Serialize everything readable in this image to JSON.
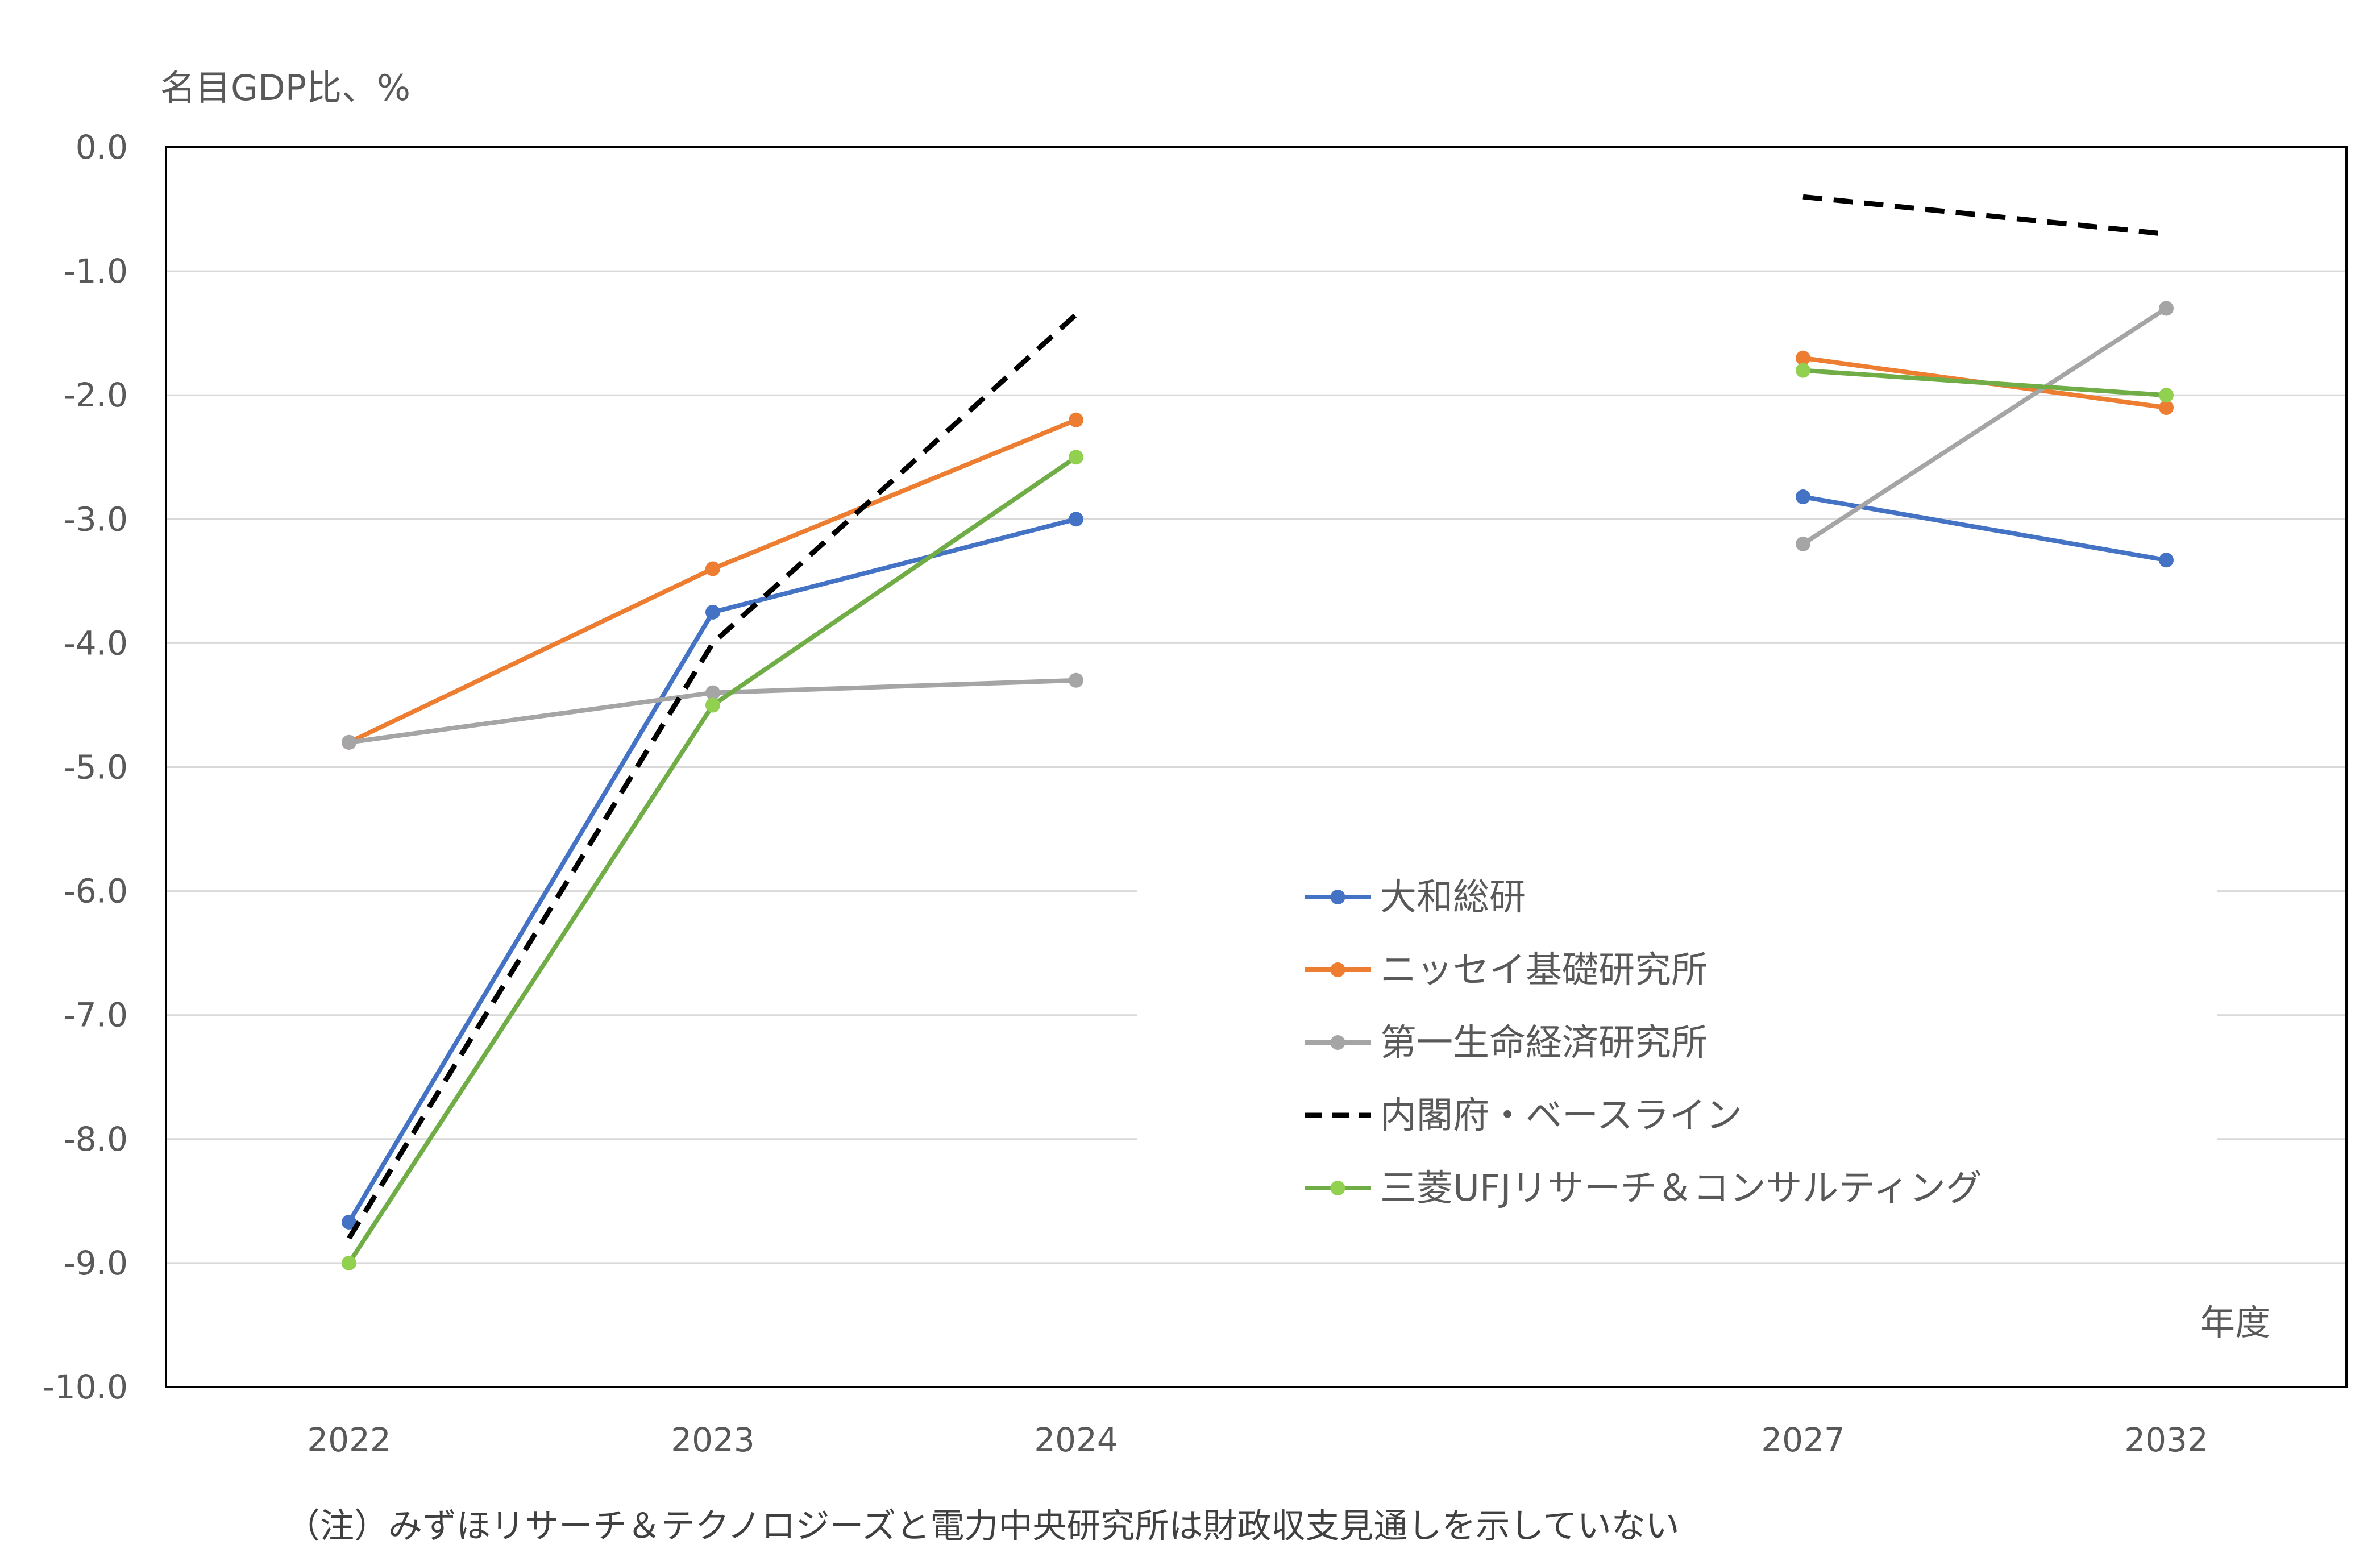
{
  "chart_data": {
    "type": "line",
    "ylabel": "名目GDP比、%",
    "xlabel": "年度",
    "note": "（注）みずほリサーチ＆テクノロジーズと電力中央研究所は財政収支見通しを示していない",
    "categories": [
      "2022",
      "2023",
      "2024",
      "2027",
      "2032"
    ],
    "ylim": [
      -10.0,
      0.0
    ],
    "yticks": [
      "0.0",
      "-1.0",
      "-2.0",
      "-3.0",
      "-4.0",
      "-5.0",
      "-6.0",
      "-7.0",
      "-8.0",
      "-9.0",
      "-10.0"
    ],
    "grid": true,
    "legend_position": "center-right",
    "series": [
      {
        "name": "大和総研",
        "color": "#4472C4",
        "dashed": false,
        "markers": true,
        "values": [
          -8.67,
          -3.75,
          -3.0,
          -2.82,
          -3.33
        ]
      },
      {
        "name": "ニッセイ基礎研究所",
        "color": "#ED7D31",
        "dashed": false,
        "markers": true,
        "values": [
          -4.8,
          -3.4,
          -2.2,
          -1.7,
          -2.1
        ]
      },
      {
        "name": "第一生命経済研究所",
        "color": "#A5A5A5",
        "dashed": false,
        "markers": true,
        "values": [
          -4.8,
          -4.4,
          -4.3,
          -3.2,
          -1.3
        ]
      },
      {
        "name": "内閣府・ベースライン",
        "color": "#000000",
        "dashed": true,
        "markers": false,
        "values": [
          -8.8,
          -4.0,
          -1.35,
          -0.4,
          -0.7
        ]
      },
      {
        "name": "三菱UFJリサーチ＆コンサルティング",
        "color": "#70AD47",
        "markerColor": "#92D050",
        "dashed": false,
        "markers": true,
        "values": [
          -9.0,
          -4.5,
          -2.5,
          -1.8,
          -2.0
        ]
      }
    ]
  }
}
